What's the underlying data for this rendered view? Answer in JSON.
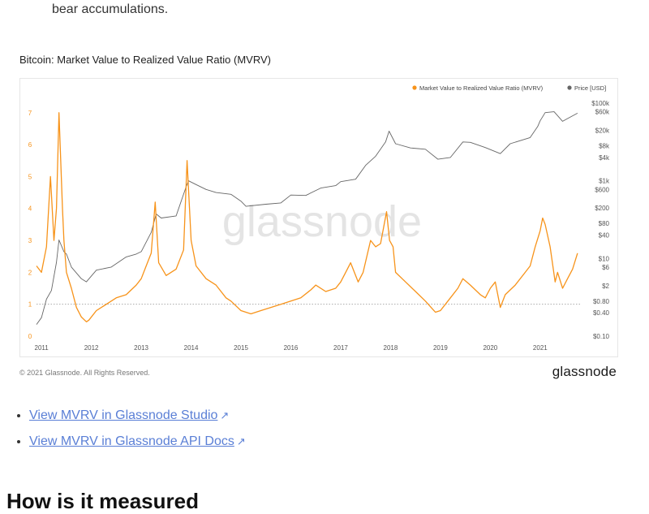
{
  "intro_text": "bear accumulations.",
  "figure_title": "Bitcoin: Market Value to Realized Value Ratio (MVRV)",
  "watermark": "glassnode",
  "copyright": "© 2021 Glassnode. All Rights Reserved.",
  "brand": "glassnode",
  "links": [
    {
      "label": "View MVRV in Glassnode Studio",
      "icon": "external-link-icon"
    },
    {
      "label": "View MVRV in Glassnode API Docs",
      "icon": "external-link-icon"
    }
  ],
  "ext_glyph": "↗",
  "next_heading": "How is it measured",
  "colors": {
    "mvrv": "#f7931a",
    "price": "#666666",
    "link": "#5a7fd6",
    "ref_line": "#aaaaaa"
  },
  "chart_data": {
    "type": "line",
    "legend_position": "top-right",
    "grid": false,
    "reference_line_y": 1,
    "x_ticks": [
      "2011",
      "2012",
      "2013",
      "2014",
      "2015",
      "2016",
      "2017",
      "2018",
      "2019",
      "2020",
      "2021"
    ],
    "x_range": [
      2010.9,
      2021.8
    ],
    "y_left": {
      "ticks": [
        "0",
        "1",
        "2",
        "3",
        "4",
        "5",
        "6",
        "7"
      ],
      "range": [
        0,
        7.3
      ]
    },
    "y_right": {
      "ticks": [
        "$0.10",
        "$0.40",
        "$0.80",
        "$2",
        "$6",
        "$10",
        "$40",
        "$80",
        "$200",
        "$600",
        "$1k",
        "$4k",
        "$8k",
        "$20k",
        "$60k",
        "$100k"
      ],
      "scale": "log",
      "range": [
        0.1,
        100000
      ]
    },
    "series": [
      {
        "name": "Market Value to Realized Value Ratio (MVRV)",
        "axis": "left",
        "x": [
          2010.9,
          2011.0,
          2011.1,
          2011.18,
          2011.25,
          2011.3,
          2011.35,
          2011.42,
          2011.45,
          2011.5,
          2011.6,
          2011.7,
          2011.8,
          2011.9,
          2011.95,
          2012.1,
          2012.3,
          2012.5,
          2012.7,
          2012.9,
          2013.0,
          2013.1,
          2013.2,
          2013.28,
          2013.35,
          2013.5,
          2013.7,
          2013.85,
          2013.92,
          2014.0,
          2014.1,
          2014.3,
          2014.5,
          2014.7,
          2014.8,
          2015.0,
          2015.2,
          2015.4,
          2015.6,
          2015.8,
          2016.0,
          2016.2,
          2016.4,
          2016.5,
          2016.7,
          2016.9,
          2017.0,
          2017.1,
          2017.2,
          2017.35,
          2017.45,
          2017.6,
          2017.7,
          2017.8,
          2017.92,
          2017.98,
          2018.05,
          2018.1,
          2018.3,
          2018.5,
          2018.7,
          2018.9,
          2019.0,
          2019.2,
          2019.35,
          2019.45,
          2019.6,
          2019.8,
          2019.9,
          2020.0,
          2020.1,
          2020.2,
          2020.3,
          2020.5,
          2020.7,
          2020.8,
          2020.9,
          2021.0,
          2021.05,
          2021.1,
          2021.2,
          2021.3,
          2021.35,
          2021.45,
          2021.55,
          2021.65,
          2021.75
        ],
        "y": [
          2.2,
          2.0,
          2.8,
          5.0,
          3.0,
          4.0,
          7.0,
          4.0,
          3.0,
          2.0,
          1.5,
          0.9,
          0.6,
          0.45,
          0.5,
          0.8,
          1.0,
          1.2,
          1.3,
          1.6,
          1.8,
          2.2,
          2.6,
          4.2,
          2.3,
          1.9,
          2.1,
          2.7,
          5.5,
          3.0,
          2.2,
          1.8,
          1.6,
          1.2,
          1.1,
          0.8,
          0.7,
          0.8,
          0.9,
          1.0,
          1.1,
          1.2,
          1.45,
          1.6,
          1.4,
          1.5,
          1.7,
          2.0,
          2.3,
          1.7,
          2.0,
          3.0,
          2.8,
          2.9,
          3.9,
          3.0,
          2.8,
          2.0,
          1.7,
          1.4,
          1.1,
          0.75,
          0.8,
          1.2,
          1.5,
          1.8,
          1.6,
          1.3,
          1.2,
          1.5,
          1.7,
          0.9,
          1.3,
          1.6,
          2.0,
          2.2,
          2.8,
          3.3,
          3.7,
          3.5,
          2.8,
          1.7,
          2.0,
          1.5,
          1.8,
          2.1,
          2.6
        ]
      },
      {
        "name": "Price [USD]",
        "axis": "right",
        "x": [
          2010.9,
          2011.0,
          2011.1,
          2011.2,
          2011.3,
          2011.35,
          2011.45,
          2011.5,
          2011.6,
          2011.8,
          2011.9,
          2012.1,
          2012.4,
          2012.7,
          2012.9,
          2013.0,
          2013.2,
          2013.3,
          2013.4,
          2013.7,
          2013.9,
          2013.95,
          2014.1,
          2014.3,
          2014.5,
          2014.8,
          2015.0,
          2015.1,
          2015.5,
          2015.8,
          2016.0,
          2016.3,
          2016.6,
          2016.9,
          2017.0,
          2017.3,
          2017.5,
          2017.7,
          2017.9,
          2017.97,
          2018.1,
          2018.4,
          2018.7,
          2018.95,
          2019.2,
          2019.45,
          2019.6,
          2019.9,
          2020.2,
          2020.4,
          2020.8,
          2020.95,
          2021.0,
          2021.1,
          2021.28,
          2021.45,
          2021.55,
          2021.75
        ],
        "y": [
          0.2,
          0.3,
          0.9,
          1.5,
          8,
          30,
          15,
          13,
          6,
          3,
          2.5,
          5,
          6,
          11,
          13,
          15,
          47,
          140,
          110,
          125,
          700,
          1000,
          800,
          600,
          500,
          450,
          300,
          220,
          250,
          270,
          430,
          420,
          650,
          750,
          950,
          1100,
          2500,
          4300,
          10000,
          19000,
          9000,
          7000,
          6500,
          3600,
          4000,
          10000,
          9800,
          7200,
          5000,
          9000,
          13000,
          25000,
          35000,
          57000,
          60000,
          34000,
          40000,
          55000
        ]
      }
    ]
  }
}
